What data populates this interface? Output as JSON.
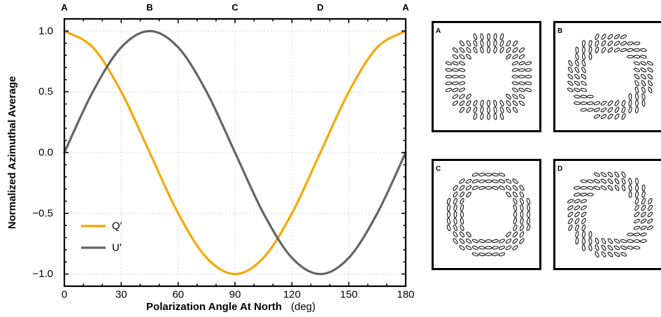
{
  "chart_data": {
    "type": "line",
    "xlabel": "Polarization Angle At North",
    "xunit": "(deg)",
    "ylabel": "Normalized Azimuthal Average",
    "xlim": [
      0,
      180
    ],
    "ylim": [
      -1.1,
      1.1
    ],
    "x_ticks": [
      0,
      30,
      60,
      90,
      120,
      150,
      180
    ],
    "x_tick_labels": [
      "0",
      "30",
      "60",
      "90",
      "120",
      "150",
      "180"
    ],
    "y_ticks": [
      1.0,
      0.5,
      0.0,
      -0.5,
      -1.0
    ],
    "y_tick_labels": [
      "1.0",
      "0.5",
      "0.0",
      "−0.5",
      "−1.0"
    ],
    "top_markers": [
      {
        "x": 0,
        "label": "A"
      },
      {
        "x": 45,
        "label": "B"
      },
      {
        "x": 90,
        "label": "C"
      },
      {
        "x": 135,
        "label": "D"
      },
      {
        "x": 180,
        "label": "A"
      }
    ],
    "grid": true,
    "legend_position": "bottom-left",
    "x": [
      0,
      15,
      30,
      45,
      60,
      75,
      90,
      105,
      120,
      135,
      150,
      165,
      180
    ],
    "series": [
      {
        "name": "Q′",
        "color": "#f5a800",
        "values": [
          1.0,
          0.866,
          0.5,
          0.0,
          -0.5,
          -0.866,
          -1.0,
          -0.866,
          -0.5,
          0.0,
          0.5,
          0.866,
          1.0
        ]
      },
      {
        "name": "U′",
        "color": "#646464",
        "values": [
          0.0,
          0.5,
          0.866,
          1.0,
          0.866,
          0.5,
          0.0,
          -0.5,
          -0.866,
          -1.0,
          -0.866,
          -0.5,
          0.0
        ]
      }
    ]
  },
  "insets": [
    {
      "label": "A",
      "angle_deg": 0
    },
    {
      "label": "B",
      "angle_deg": 45
    },
    {
      "label": "C",
      "angle_deg": 90
    },
    {
      "label": "D",
      "angle_deg": 135
    }
  ]
}
